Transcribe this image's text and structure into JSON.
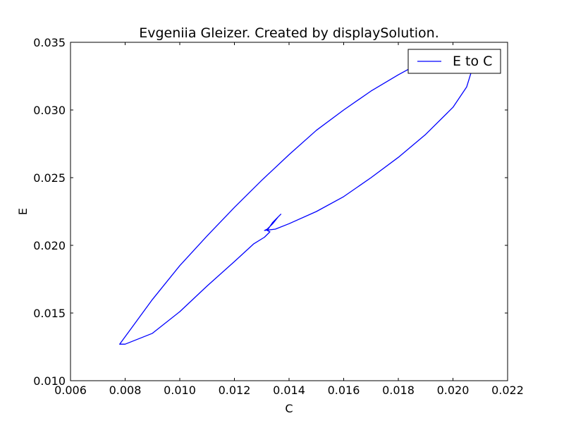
{
  "chart_data": {
    "type": "line",
    "title": "Evgeniia Gleizer. Created by displaySolution.",
    "xlabel": "C",
    "ylabel": "E",
    "xlim": [
      0.006,
      0.022
    ],
    "ylim": [
      0.01,
      0.035
    ],
    "x_ticks": [
      "0.006",
      "0.008",
      "0.010",
      "0.012",
      "0.014",
      "0.016",
      "0.018",
      "0.020",
      "0.022"
    ],
    "y_ticks": [
      "0.010",
      "0.015",
      "0.020",
      "0.025",
      "0.030",
      "0.035"
    ],
    "grid": false,
    "legend_position": "top-right",
    "series": [
      {
        "name": "E to C",
        "color": "#0000ff",
        "points": [
          [
            0.0132,
            0.0211
          ],
          [
            0.0134,
            0.0217
          ],
          [
            0.0136,
            0.0221
          ],
          [
            0.0137,
            0.0223
          ],
          [
            0.0136,
            0.0221
          ],
          [
            0.0134,
            0.0216
          ],
          [
            0.0132,
            0.0212
          ],
          [
            0.0131,
            0.0211
          ],
          [
            0.0135,
            0.0212
          ],
          [
            0.014,
            0.0216
          ],
          [
            0.015,
            0.0225
          ],
          [
            0.016,
            0.0236
          ],
          [
            0.017,
            0.025
          ],
          [
            0.018,
            0.0265
          ],
          [
            0.019,
            0.0282
          ],
          [
            0.02,
            0.0302
          ],
          [
            0.0205,
            0.0317
          ],
          [
            0.0207,
            0.033
          ],
          [
            0.0205,
            0.034
          ],
          [
            0.0199,
            0.0342
          ],
          [
            0.019,
            0.0337
          ],
          [
            0.018,
            0.0326
          ],
          [
            0.017,
            0.0314
          ],
          [
            0.016,
            0.03
          ],
          [
            0.015,
            0.0285
          ],
          [
            0.014,
            0.0267
          ],
          [
            0.013,
            0.0248
          ],
          [
            0.012,
            0.0228
          ],
          [
            0.011,
            0.0207
          ],
          [
            0.01,
            0.0185
          ],
          [
            0.009,
            0.016
          ],
          [
            0.0082,
            0.0138
          ],
          [
            0.0078,
            0.0127
          ],
          [
            0.008,
            0.0127
          ],
          [
            0.009,
            0.0135
          ],
          [
            0.01,
            0.0151
          ],
          [
            0.011,
            0.017
          ],
          [
            0.012,
            0.0188
          ],
          [
            0.0127,
            0.0201
          ],
          [
            0.0131,
            0.0206
          ],
          [
            0.0133,
            0.021
          ],
          [
            0.0132,
            0.0211
          ]
        ]
      }
    ]
  }
}
